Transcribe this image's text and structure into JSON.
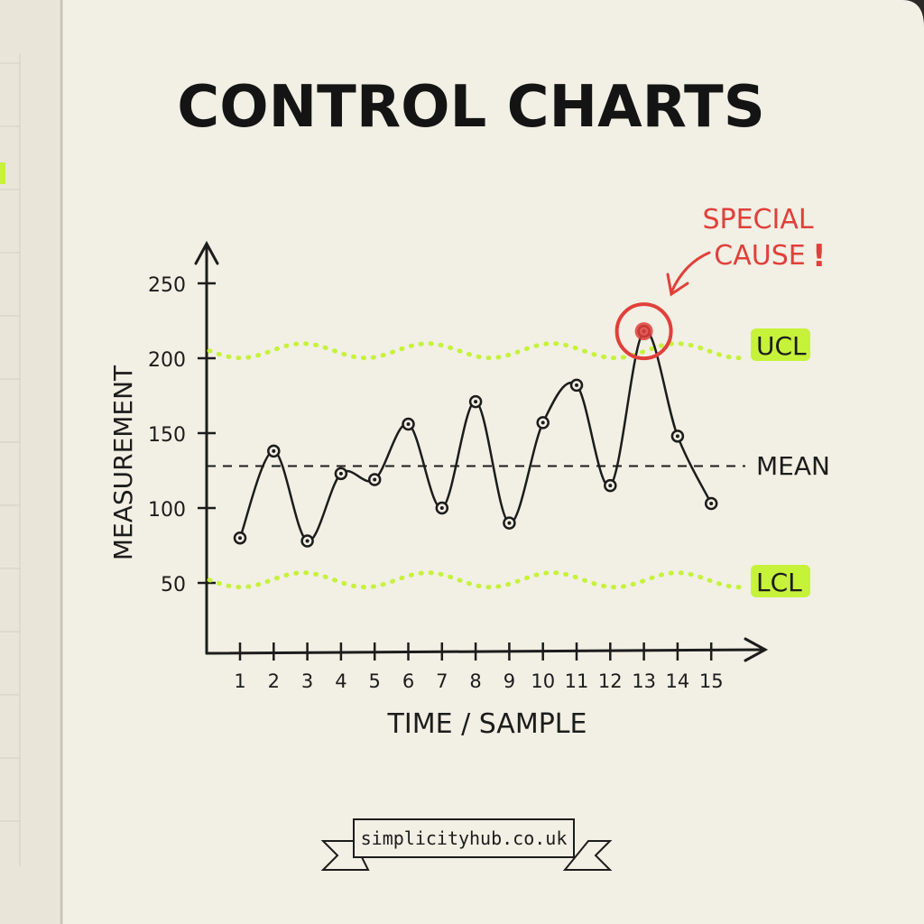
{
  "title": "CONTROL CHARTS",
  "colors": {
    "paper": "#f2efe4",
    "ink": "#1c1c1c",
    "highlight": "#c6f23a",
    "alert": "#e0403b"
  },
  "annotation": {
    "line1": "SPECIAL",
    "line2": "CAUSE",
    "mark": "!"
  },
  "footer": {
    "site": "simplicityhub.co.uk"
  },
  "chart_data": {
    "type": "line",
    "title": "CONTROL CHARTS",
    "xlabel": "TIME / SAMPLE",
    "ylabel": "MEASUREMENT",
    "x": [
      1,
      2,
      3,
      4,
      5,
      6,
      7,
      8,
      9,
      10,
      11,
      12,
      13,
      14,
      15
    ],
    "x_ticks": [
      "1",
      "2",
      "3",
      "4",
      "5",
      "6",
      "7",
      "8",
      "9",
      "10",
      "11",
      "12",
      "13",
      "14",
      "15"
    ],
    "y_ticks": [
      "50",
      "100",
      "150",
      "200",
      "250"
    ],
    "y_tick_values": [
      50,
      100,
      150,
      200,
      250
    ],
    "ylim": [
      0,
      265
    ],
    "values": [
      80,
      138,
      78,
      123,
      119,
      156,
      100,
      171,
      90,
      157,
      182,
      115,
      218,
      148,
      103
    ],
    "center_line": {
      "label": "MEAN",
      "value": 128
    },
    "control_limits": [
      {
        "label": "UCL",
        "value": 205
      },
      {
        "label": "LCL",
        "value": 52
      }
    ],
    "highlighted_point": {
      "x": 13,
      "y": 218
    },
    "grid": false
  }
}
